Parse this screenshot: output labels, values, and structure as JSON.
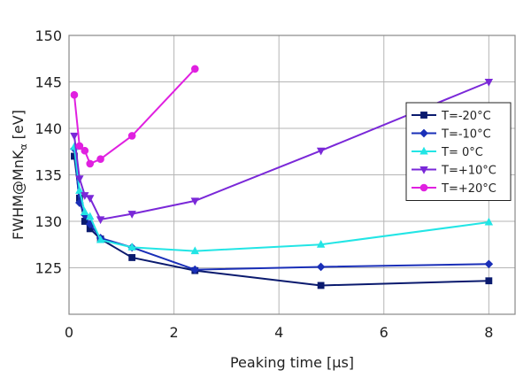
{
  "chart_data": {
    "type": "line",
    "title": "",
    "xlabel": "Peaking time [µs]",
    "ylabel_main": "FWHM@MnK",
    "ylabel_sub": "α",
    "ylabel_unit": " [eV]",
    "xlim": [
      0,
      8.5
    ],
    "ylim": [
      120,
      150
    ],
    "xticks": [
      0,
      2,
      4,
      6,
      8
    ],
    "yticks": [
      125,
      130,
      135,
      140,
      145,
      150
    ],
    "grid": true,
    "legend_position": "right",
    "series": [
      {
        "name": "T=-20°C",
        "color": "#0a1a6e",
        "marker": "square",
        "x": [
          0.1,
          0.2,
          0.3,
          0.4,
          0.6,
          1.2,
          2.4,
          4.8,
          8.0
        ],
        "y": [
          137.0,
          132.5,
          130.0,
          129.2,
          128.1,
          126.1,
          124.7,
          123.1,
          123.6
        ]
      },
      {
        "name": "T=-10°C",
        "color": "#1a2fb8",
        "marker": "diamond",
        "x": [
          0.1,
          0.2,
          0.3,
          0.4,
          0.6,
          1.2,
          2.4,
          4.8,
          8.0
        ],
        "y": [
          137.8,
          132.0,
          130.7,
          129.7,
          128.2,
          127.2,
          124.8,
          125.1,
          125.4
        ]
      },
      {
        "name": "T=  0°C",
        "color": "#22e5e5",
        "marker": "triangle",
        "x": [
          0.1,
          0.2,
          0.3,
          0.4,
          0.6,
          1.2,
          2.4,
          4.8,
          8.0
        ],
        "y": [
          138.0,
          133.3,
          131.0,
          130.5,
          128.0,
          127.2,
          126.8,
          127.5,
          129.9
        ]
      },
      {
        "name": "T=+10°C",
        "color": "#7a28d8",
        "marker": "triangle-down",
        "x": [
          0.1,
          0.2,
          0.3,
          0.4,
          0.6,
          1.2,
          2.4,
          4.8,
          8.0
        ],
        "y": [
          139.2,
          134.6,
          132.8,
          132.5,
          130.2,
          130.8,
          132.2,
          137.6,
          145.0
        ]
      },
      {
        "name": "T=+20°C",
        "color": "#e020e0",
        "marker": "circle",
        "x": [
          0.1,
          0.2,
          0.3,
          0.4,
          0.6,
          1.2,
          2.4
        ],
        "y": [
          143.6,
          138.1,
          137.6,
          136.2,
          136.7,
          139.2,
          146.4
        ]
      }
    ]
  }
}
